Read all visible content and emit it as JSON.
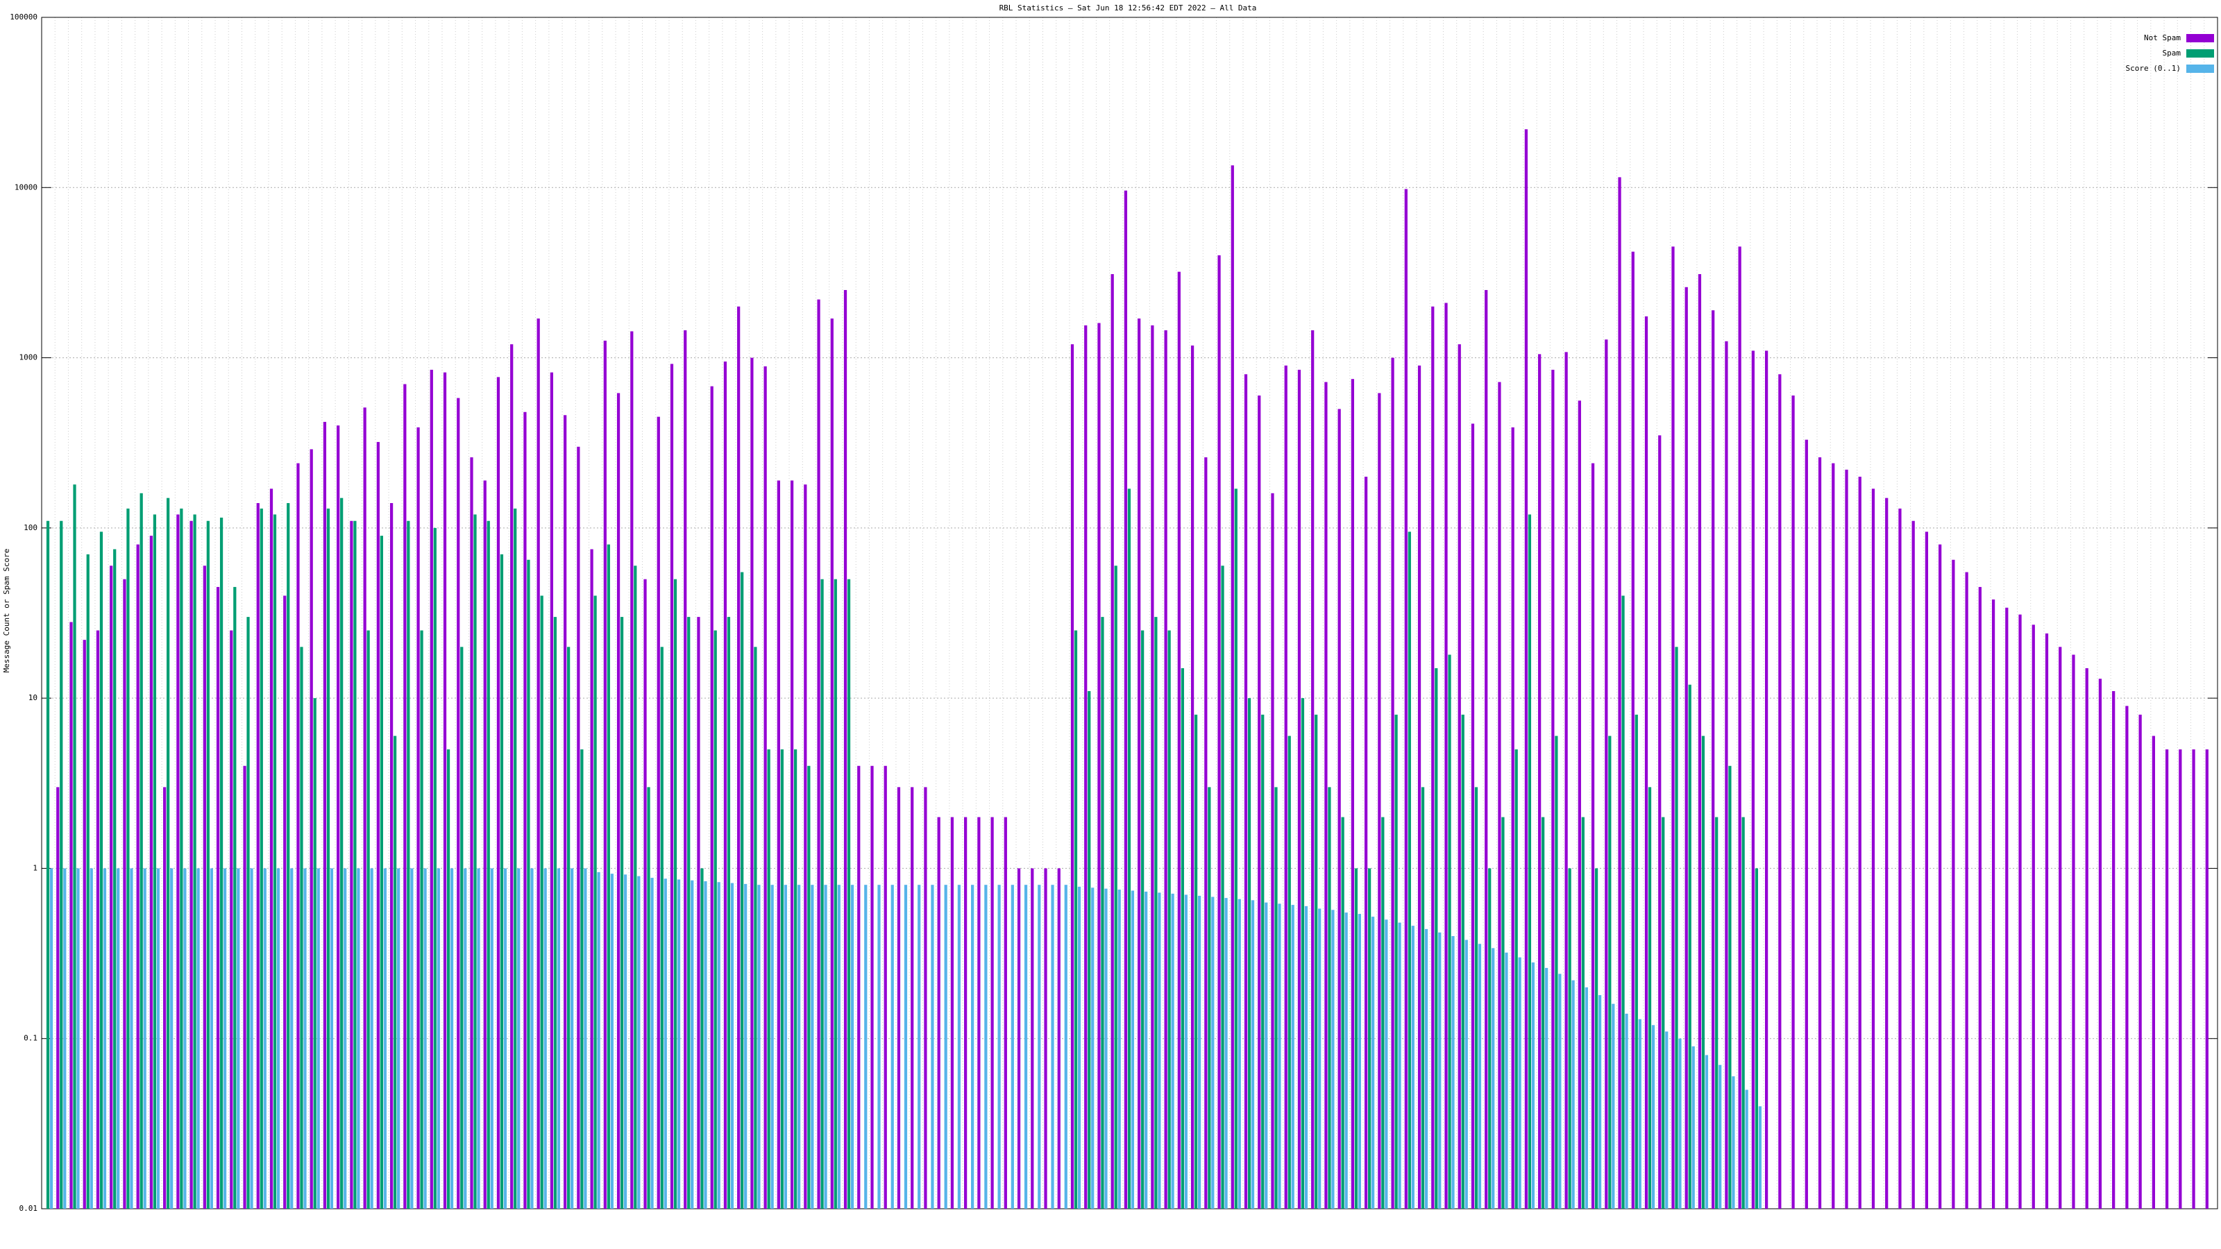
{
  "chart_data": {
    "type": "bar",
    "title": "RBL Statistics — Sat Jun 18 12:56:42 EDT 2022 — All Data",
    "y_label": "Message Count or Spam Score",
    "log_y": true,
    "grid": true,
    "legend": "upper right",
    "ylim": [
      0.01,
      100000
    ],
    "yticks": [
      0.01,
      0.1,
      1,
      10,
      100,
      1000,
      10000,
      100000
    ],
    "series": [
      {
        "name": "Not Spam",
        "color": "#9400d3",
        "values": [
          0.01,
          3,
          28,
          22,
          25,
          60,
          50,
          80,
          90,
          3,
          120,
          110,
          60,
          45,
          25,
          4,
          140,
          170,
          40,
          240,
          290,
          420,
          400,
          110,
          510,
          320,
          140,
          700,
          390,
          850,
          820,
          580,
          260,
          190,
          770,
          1200,
          480,
          1700,
          820,
          460,
          300,
          75,
          1260,
          620,
          1430,
          50,
          450,
          920,
          1450,
          30,
          680,
          950,
          2000,
          1000,
          890,
          190,
          190,
          180,
          2200,
          1700,
          2500,
          4,
          4,
          4,
          3,
          3,
          3,
          2,
          2,
          2,
          2,
          2,
          2,
          1,
          1,
          1,
          1,
          1200,
          1550,
          1600,
          3100,
          9600,
          1700,
          1550,
          1450,
          3200,
          1180,
          260,
          4000,
          13500,
          800,
          600,
          160,
          900,
          850,
          1450,
          720,
          500,
          750,
          200,
          620,
          1000,
          9800,
          900,
          2000,
          2100,
          1200,
          410,
          2500,
          720,
          390,
          22000,
          1050,
          850,
          1080,
          560,
          240,
          1280,
          11500,
          4200,
          1750,
          350,
          4500,
          2600,
          3100,
          1900,
          1250,
          4500,
          1100,
          1100,
          800,
          600,
          330,
          260,
          240,
          220,
          200,
          170,
          150,
          130,
          110,
          95,
          80,
          65,
          55,
          45,
          38,
          34,
          31,
          27,
          24,
          20,
          18,
          15,
          13,
          11,
          9,
          8,
          6,
          5,
          5,
          5,
          5
        ]
      },
      {
        "name": "Spam",
        "color": "#009e73",
        "values": [
          110,
          110,
          180,
          70,
          95,
          75,
          130,
          160,
          120,
          150,
          130,
          120,
          110,
          115,
          45,
          30,
          130,
          120,
          140,
          20,
          10,
          130,
          150,
          110,
          25,
          90,
          6,
          110,
          25,
          100,
          5,
          20,
          120,
          110,
          70,
          130,
          65,
          40,
          30,
          20,
          5,
          40,
          80,
          30,
          60,
          3,
          20,
          50,
          30,
          1,
          25,
          30,
          55,
          20,
          5,
          5,
          5,
          4,
          50,
          50,
          50,
          0,
          0,
          0,
          0,
          0,
          0,
          0,
          0,
          0,
          0,
          0,
          0,
          0,
          0,
          0,
          0,
          25,
          11,
          30,
          60,
          170,
          25,
          30,
          25,
          15,
          8,
          3,
          60,
          170,
          10,
          8,
          3,
          6,
          10,
          8,
          3,
          2,
          1,
          1,
          2,
          8,
          95,
          3,
          15,
          18,
          8,
          3,
          1,
          2,
          5,
          120,
          2,
          6,
          1,
          2,
          1,
          6,
          40,
          8,
          3,
          2,
          20,
          12,
          6,
          2,
          4,
          2,
          1,
          0,
          0,
          0,
          0,
          0,
          0,
          0,
          0,
          0,
          0,
          0,
          0,
          0,
          0,
          0,
          0,
          0,
          0,
          0,
          0,
          0,
          0,
          0,
          0,
          0,
          0,
          0,
          0,
          0,
          0,
          0,
          0,
          0,
          0
        ]
      },
      {
        "name": "Score (0..1)",
        "color": "#56b4e9",
        "values": [
          1,
          1,
          1,
          1,
          1,
          1,
          1,
          1,
          1,
          1,
          1,
          1,
          1,
          1,
          1,
          1,
          1,
          1,
          1,
          1,
          1,
          1,
          1,
          1,
          1,
          1,
          1,
          1,
          1,
          1,
          1,
          1,
          1,
          1,
          1,
          1,
          1,
          1,
          1,
          1,
          1,
          0.95,
          0.93,
          0.92,
          0.9,
          0.88,
          0.87,
          0.86,
          0.85,
          0.84,
          0.83,
          0.82,
          0.81,
          0.8,
          0.8,
          0.8,
          0.8,
          0.8,
          0.8,
          0.8,
          0.8,
          0.8,
          0.8,
          0.8,
          0.8,
          0.8,
          0.8,
          0.8,
          0.8,
          0.8,
          0.8,
          0.8,
          0.8,
          0.8,
          0.8,
          0.8,
          0.8,
          0.78,
          0.77,
          0.76,
          0.75,
          0.74,
          0.73,
          0.72,
          0.71,
          0.7,
          0.69,
          0.68,
          0.67,
          0.66,
          0.65,
          0.63,
          0.62,
          0.61,
          0.6,
          0.58,
          0.57,
          0.55,
          0.54,
          0.52,
          0.5,
          0.48,
          0.46,
          0.44,
          0.42,
          0.4,
          0.38,
          0.36,
          0.34,
          0.32,
          0.3,
          0.28,
          0.26,
          0.24,
          0.22,
          0.2,
          0.18,
          0.16,
          0.14,
          0.13,
          0.12,
          0.11,
          0.1,
          0.09,
          0.08,
          0.07,
          0.06,
          0.05,
          0.04,
          0,
          0,
          0,
          0,
          0,
          0,
          0,
          0,
          0,
          0,
          0,
          0,
          0,
          0,
          0,
          0,
          0,
          0,
          0,
          0,
          0,
          0,
          0,
          0,
          0,
          0,
          0,
          0,
          0,
          0,
          0,
          0,
          0,
          0
        ]
      }
    ]
  }
}
